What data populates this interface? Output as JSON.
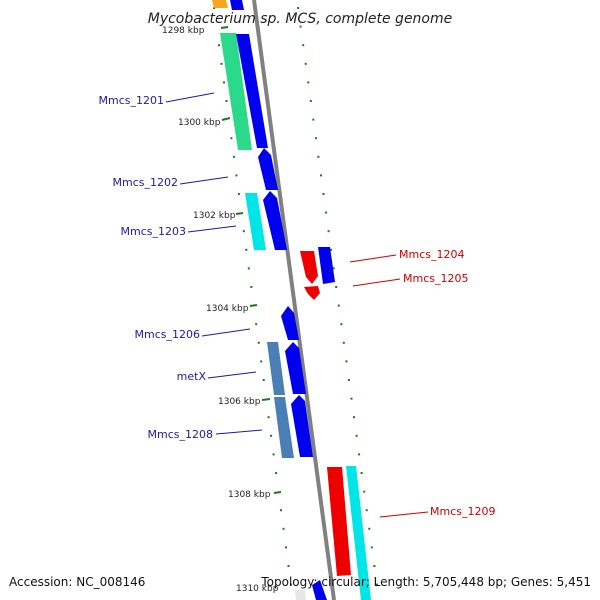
{
  "title": "Mycobacterium sp. MCS, complete genome",
  "accession": "Accession: NC_008146",
  "summary": "Topology: circular; Length: 5,705,448 bp; Genes: 5,451",
  "scale_labels": [
    "1298 kbp",
    "1300 kbp",
    "1302 kbp",
    "1304 kbp",
    "1306 kbp",
    "1308 kbp",
    "1310 kbp"
  ],
  "colors": {
    "backbone": "#808080",
    "tick": "#1a7a1a",
    "cds_forward": "#0000ee",
    "cds_reverse": "#ee0000",
    "cog_green": "#2bd98a",
    "cog_cyan": "#00e5e5",
    "cog_steel": "#4a7fb5",
    "cog_orange": "#f5a623",
    "label_forward": "#1a1aa6",
    "label_reverse": "#cc0000"
  },
  "genes": [
    {
      "name": "Mmcs_1201",
      "strand": "forward"
    },
    {
      "name": "Mmcs_1202",
      "strand": "forward"
    },
    {
      "name": "Mmcs_1203",
      "strand": "forward"
    },
    {
      "name": "Mmcs_1204",
      "strand": "reverse"
    },
    {
      "name": "Mmcs_1205",
      "strand": "reverse"
    },
    {
      "name": "Mmcs_1206",
      "strand": "forward"
    },
    {
      "name": "metX",
      "strand": "forward"
    },
    {
      "name": "Mmcs_1208",
      "strand": "forward"
    },
    {
      "name": "Mmcs_1209",
      "strand": "reverse"
    }
  ]
}
